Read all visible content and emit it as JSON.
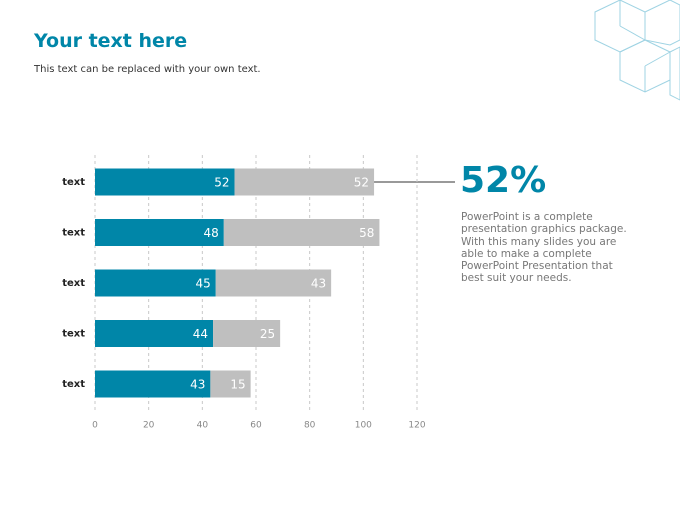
{
  "header": {
    "title": "Your text here",
    "subtitle": "This text can be replaced with your own text."
  },
  "chart_data": {
    "type": "stacked-bar-horizontal",
    "categories": [
      "text",
      "text",
      "text",
      "text",
      "text"
    ],
    "series": [
      {
        "color": "#0086a8",
        "values": [
          52,
          48,
          45,
          44,
          43
        ]
      },
      {
        "color": "#bfbfbf",
        "values": [
          52,
          58,
          43,
          25,
          15
        ]
      }
    ],
    "xlim": [
      0,
      120
    ],
    "xticks": [
      0,
      20,
      40,
      60,
      80,
      100,
      120
    ],
    "grid": true,
    "annotation": {
      "value": "52%",
      "text": [
        "PowerPoint is a complete",
        "presentation graphics package.",
        "With this many slides you are",
        "able to make a complete",
        "PowerPoint Presentation that",
        "best suit your needs."
      ]
    }
  }
}
